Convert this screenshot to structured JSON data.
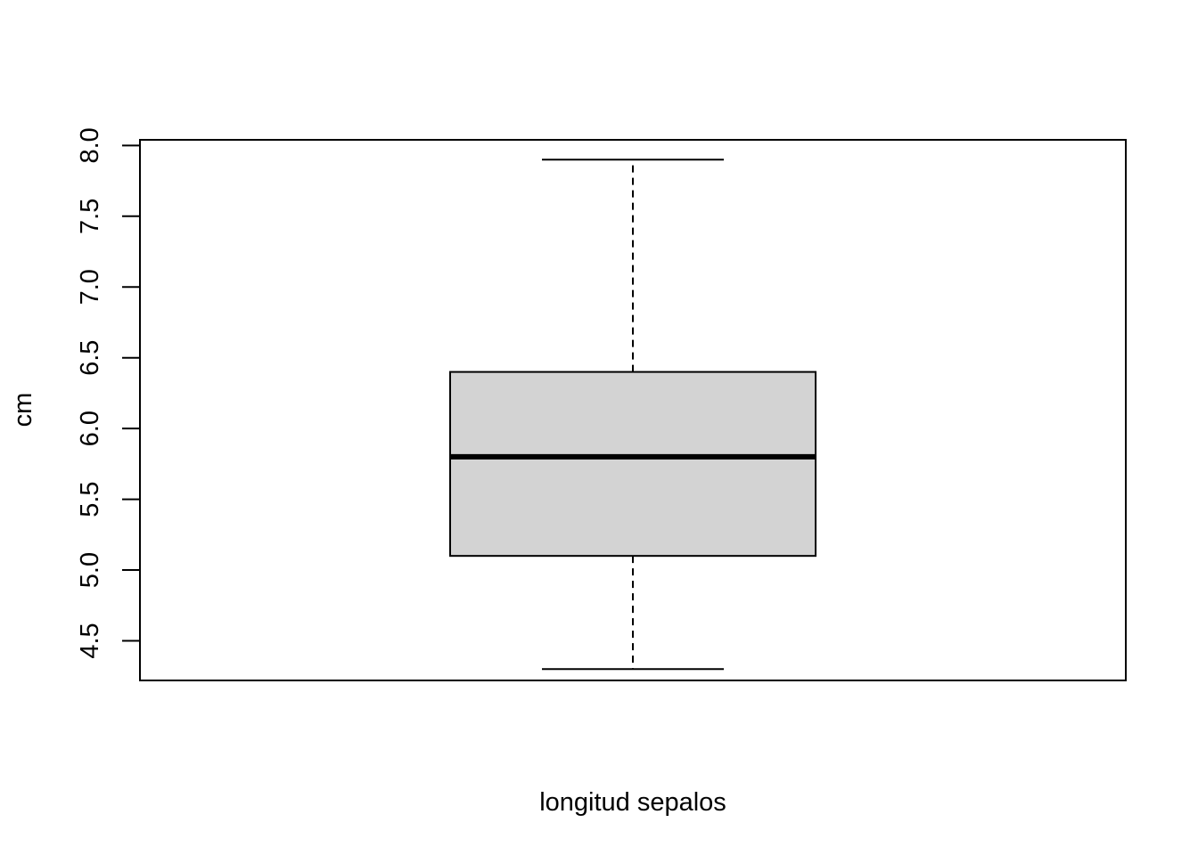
{
  "chart_data": {
    "type": "box",
    "title": "",
    "xlabel": "longitud sepalos",
    "ylabel": "cm",
    "ylim": [
      4.22,
      8.04
    ],
    "yticks": [
      4.5,
      5.0,
      5.5,
      6.0,
      6.5,
      7.0,
      7.5,
      8.0
    ],
    "ytick_labels": [
      "4.5",
      "5.0",
      "5.5",
      "6.0",
      "6.5",
      "7.0",
      "7.5",
      "8.0"
    ],
    "grid": false,
    "box": {
      "min": 4.3,
      "q1": 5.1,
      "median": 5.8,
      "q3": 6.4,
      "max": 7.9
    },
    "colors": {
      "box_fill": "#d3d3d3",
      "line": "#000000",
      "background": "#ffffff"
    }
  }
}
